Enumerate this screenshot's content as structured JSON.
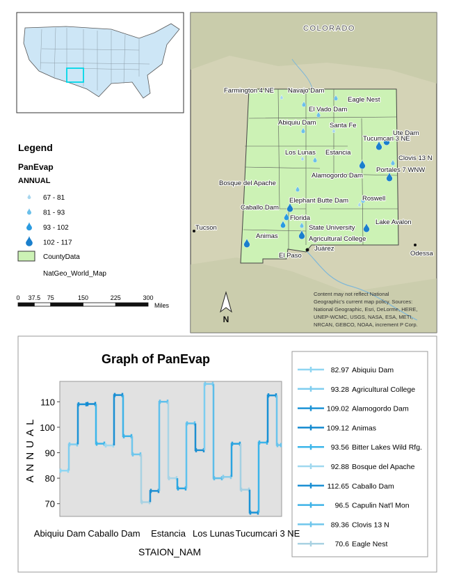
{
  "map": {
    "labels": [
      "COLORADO",
      "Farmington 4 NE",
      "Navajo Dam",
      "Eagle Nest",
      "El Vado Dam",
      "Abiquiu Dam",
      "Santa Fe",
      "Tucumcari 3 NE",
      "Ute Dam",
      "Los Lunas",
      "Estancia",
      "Clovis 13 N",
      "Alamogordo Dam",
      "Portales 7 WNW",
      "Bosque del Apache",
      "Elephant Butte Dam",
      "Roswell",
      "Caballo Dam",
      "Florida",
      "State University",
      "Lake Avalon",
      "Animas",
      "Agricultural College",
      "Tucson",
      "El Paso",
      "Juárez",
      "Odessa"
    ],
    "north_arrow": "N",
    "disclaimer": [
      "Content may not reflect National",
      "Geographic's current map policy. Sources:",
      "National Geographic, Esri, DeLorme, HERE,",
      "UNEP-WCMC, USGS, NASA, ESA, METI,",
      "NRCAN, GEBCO, NOAA, increment P Corp."
    ]
  },
  "legend": {
    "title": "Legend",
    "layer": "PanEvap",
    "field": "ANNUAL",
    "classes": [
      "67 - 81",
      "81 - 93",
      "93 - 102",
      "102 - 117"
    ],
    "county_layer": "CountyData",
    "basemap": "NatGeo_World_Map"
  },
  "scale_bar": {
    "ticks": [
      0,
      37.5,
      75,
      150,
      225,
      300
    ],
    "unit": "Miles"
  },
  "chart_data": {
    "type": "step",
    "title": "Graph of PanEvap",
    "x_label": "STAION_NAM",
    "y_label": "ANNUAL",
    "categories": [
      "Abiquiu Dam",
      null,
      null,
      null,
      null,
      null,
      "Caballo Dam",
      null,
      null,
      null,
      null,
      null,
      "Estancia",
      null,
      null,
      null,
      null,
      "Los Lunas",
      null,
      null,
      null,
      null,
      null,
      "Tucumcari 3 NE",
      null
    ],
    "values": [
      82.97,
      93.28,
      109.02,
      109.12,
      93.56,
      92.88,
      112.65,
      96.5,
      89.36,
      70.6,
      75,
      110,
      80,
      76,
      101.5,
      91,
      117,
      80,
      80.5,
      93.5,
      75.5,
      66.5,
      94,
      112.5,
      93
    ],
    "colors": [
      "#8fd6f2",
      "#7fcdef",
      "#1c93d6",
      "#148ad0",
      "#3cb6ea",
      "#9fd8ef",
      "#1a8fd3",
      "#3fb3e8",
      "#6fc6ec",
      "#a9d2e2",
      "#1f8fd2",
      "#5fc0ec",
      "#a8d4e6",
      "#2aa6e2",
      "#5fc2ee",
      "#1d8fd0",
      "#7ccdf0",
      "#5cbde9",
      "#89cdea",
      "#2aa3e0",
      "#a4d0e2",
      "#1b93d6",
      "#3bb4ea",
      "#1790d4",
      "#6ac4ec"
    ],
    "legend": [
      "Abiquiu Dam",
      "Agricultural College",
      "Alamogordo Dam",
      "Animas",
      "Bitter Lakes Wild Rfg.",
      "Bosque del Apache",
      "Caballo Dam",
      "Capulin Nat'l Mon",
      "Clovis 13 N",
      "Eagle Nest"
    ],
    "ylim": [
      65,
      118
    ],
    "yticks": [
      70,
      80,
      90,
      100,
      110
    ]
  }
}
